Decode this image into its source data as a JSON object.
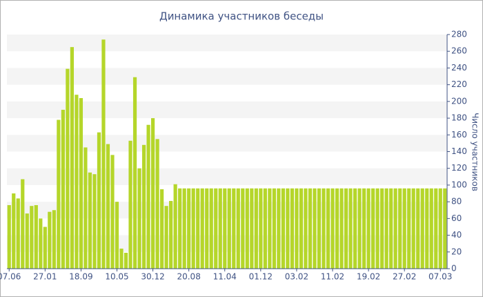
{
  "chart_data": {
    "type": "bar",
    "title": "Динамика участников беседы",
    "y_label": "Число участников",
    "categories": [
      "07.06",
      null,
      null,
      null,
      null,
      null,
      null,
      null,
      "27.01",
      null,
      null,
      null,
      null,
      null,
      null,
      null,
      "18.09",
      null,
      null,
      null,
      null,
      null,
      null,
      null,
      "10.05",
      null,
      null,
      null,
      null,
      null,
      null,
      null,
      "30.12",
      null,
      null,
      null,
      null,
      null,
      null,
      null,
      "20.08",
      null,
      null,
      null,
      null,
      null,
      null,
      null,
      "11.04",
      null,
      null,
      null,
      null,
      null,
      null,
      null,
      "01.12",
      null,
      null,
      null,
      null,
      null,
      null,
      null,
      "03.02",
      null,
      null,
      null,
      null,
      null,
      null,
      null,
      "11.02",
      null,
      null,
      null,
      null,
      null,
      null,
      null,
      "19.02",
      null,
      null,
      null,
      null,
      null,
      null,
      null,
      "27.02",
      null,
      null,
      null,
      null,
      null,
      null,
      null,
      "07.03",
      null
    ],
    "values": [
      76,
      90,
      84,
      107,
      66,
      75,
      76,
      60,
      50,
      68,
      70,
      178,
      190,
      239,
      265,
      208,
      204,
      145,
      115,
      113,
      163,
      274,
      149,
      136,
      80,
      24,
      19,
      153,
      229,
      120,
      148,
      172,
      180,
      155,
      95,
      75,
      81,
      101,
      96,
      96,
      96,
      96,
      96,
      96,
      96,
      96,
      96,
      96,
      96,
      96,
      96,
      96,
      96,
      96,
      96,
      96,
      96,
      96,
      96,
      96,
      96,
      96,
      96,
      96,
      96,
      96,
      96,
      96,
      96,
      96,
      96,
      96,
      96,
      96,
      96,
      96,
      96,
      96,
      96,
      96,
      96,
      96,
      96,
      96,
      96,
      96,
      96,
      96,
      96,
      96,
      96,
      96,
      96,
      96,
      96,
      96,
      96,
      96
    ],
    "color": "#b5d62a",
    "ylim": [
      0,
      280
    ],
    "yticks": [
      0,
      20,
      40,
      60,
      80,
      100,
      120,
      140,
      160,
      180,
      200,
      220,
      240,
      260,
      280
    ],
    "grid": true
  }
}
